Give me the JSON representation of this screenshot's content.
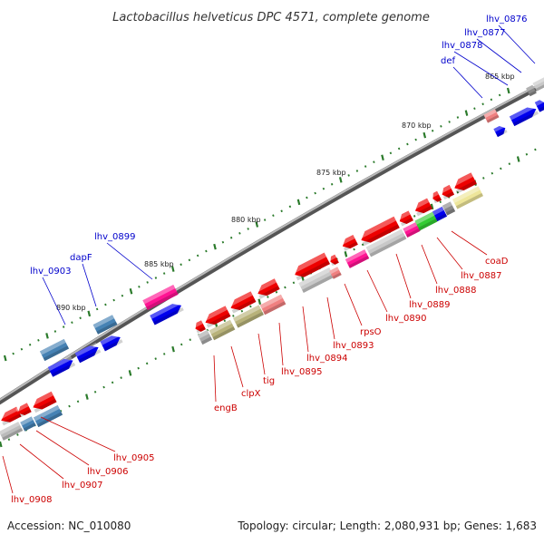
{
  "title": "Lactobacillus helveticus DPC 4571, complete genome",
  "accession": "Accession: NC_010080",
  "topology": "Topology: circular; Length: 2,080,931 bp; Genes: 1,683",
  "colors": {
    "forward_gene": "#0000ee",
    "reverse_gene": "#ee0000",
    "label_forward": "#0000cc",
    "label_reverse": "#cc0000",
    "backbone": "#888888",
    "tick": "#2a7a2a"
  },
  "scale": {
    "unit": "kbp",
    "labels": [
      "865 kbp",
      "870 kbp",
      "875 kbp",
      "880 kbp",
      "885 kbp",
      "890 kbp"
    ]
  },
  "genes_forward": [
    {
      "name": "lhv_0876",
      "color": "#0000ee"
    },
    {
      "name": "lhv_0877",
      "color": "#0000ee"
    },
    {
      "name": "lhv_0878",
      "color": "#0000ee"
    },
    {
      "name": "def",
      "color": "#f08080"
    },
    {
      "name": "lhv_0899",
      "color": "#ff1493"
    },
    {
      "name": "dapF",
      "color": "#4682b4"
    },
    {
      "name": "lhv_0903",
      "color": "#4682b4"
    }
  ],
  "genes_reverse": [
    {
      "name": "coaD",
      "color": "#ee0000"
    },
    {
      "name": "lhv_0887",
      "color": "#ee0000"
    },
    {
      "name": "lhv_0888",
      "color": "#ee0000"
    },
    {
      "name": "lhv_0889",
      "color": "#ee0000"
    },
    {
      "name": "lhv_0890",
      "color": "#ee0000"
    },
    {
      "name": "rpsO",
      "color": "#ee0000"
    },
    {
      "name": "lhv_0893",
      "color": "#ee0000"
    },
    {
      "name": "lhv_0894",
      "color": "#ee0000"
    },
    {
      "name": "lhv_0895",
      "color": "#ee0000"
    },
    {
      "name": "tig",
      "color": "#ee0000"
    },
    {
      "name": "clpX",
      "color": "#ee0000"
    },
    {
      "name": "engB",
      "color": "#ee0000"
    },
    {
      "name": "lhv_0905",
      "color": "#ee0000"
    },
    {
      "name": "lhv_0906",
      "color": "#ee0000"
    },
    {
      "name": "lhv_0907",
      "color": "#ee0000"
    },
    {
      "name": "lhv_0908",
      "color": "#ee0000"
    }
  ]
}
